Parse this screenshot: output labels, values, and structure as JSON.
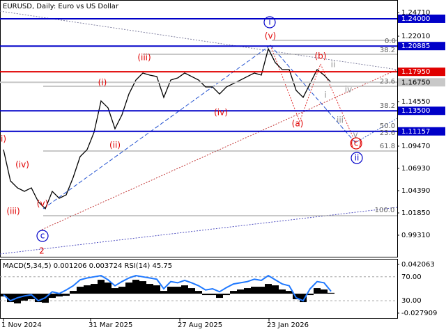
{
  "chart_data": [
    {
      "type": "line",
      "title": "EURUSD, Daily:  Euro vs US Dollar",
      "x": [
        0,
        1,
        2,
        3,
        4,
        5,
        6,
        7,
        8,
        9,
        10,
        11,
        12,
        13,
        14,
        15,
        16,
        17,
        18,
        19,
        20,
        21,
        22,
        23,
        24,
        25,
        26,
        27,
        28,
        29,
        30,
        31,
        32,
        33,
        34,
        35,
        36,
        37,
        38,
        39,
        40,
        41,
        42,
        43,
        44,
        45,
        46,
        47
      ],
      "xlim": [
        -0.5,
        56.5
      ],
      "xticks": [
        {
          "value": 0,
          "label": "1 Nov 2024"
        },
        {
          "value": 12.5,
          "label": "31 Mar 2025"
        },
        {
          "value": 25.3,
          "label": "27 Aug 2025"
        },
        {
          "value": 38.1,
          "label": "23 Jan 2026"
        }
      ],
      "ylim": [
        0.9677,
        1.2614
      ],
      "yticks": [
        {
          "value": 1.2471,
          "label": "1.24710"
        },
        {
          "value": 1.2201,
          "label": "1.22010"
        },
        {
          "value": 1.1455,
          "label": "1.14550"
        },
        {
          "value": 1.0947,
          "label": "1.09470"
        },
        {
          "value": 1.0693,
          "label": "1.06930"
        },
        {
          "value": 1.0439,
          "label": "1.04390"
        },
        {
          "value": 1.0185,
          "label": "1.01850"
        },
        {
          "value": 0.9931,
          "label": "0.99310"
        }
      ],
      "levels": [
        {
          "value": 1.24,
          "label": "1.24000",
          "color": "#0000c8"
        },
        {
          "value": 1.20885,
          "label": "1.20885",
          "color": "#0000c8"
        },
        {
          "value": 1.1795,
          "label": "1.17950",
          "color": "#e00000"
        },
        {
          "value": 1.1675,
          "label": "1.16750",
          "color": "#c8c8c8"
        },
        {
          "value": 1.135,
          "label": "1.13500",
          "color": "#0000c8"
        },
        {
          "value": 1.11157,
          "label": "1.11157",
          "color": "#0000c8"
        }
      ],
      "series": [
        {
          "color": "#000000",
          "values": [
            1.0907,
            1.055,
            1.0471,
            1.0431,
            1.0471,
            1.0312,
            1.0233,
            1.0431,
            1.0352,
            1.0391,
            1.059,
            1.0828,
            1.0907,
            1.1106,
            1.1463,
            1.1384,
            1.1145,
            1.1304,
            1.1542,
            1.1701,
            1.1781,
            1.1757,
            1.1741,
            1.1503,
            1.1701,
            1.1725,
            1.1781,
            1.1741,
            1.1701,
            1.1622,
            1.1622,
            1.1542,
            1.1622,
            1.1661,
            1.1701,
            1.1741,
            1.1781,
            1.1757,
            1.2058,
            1.19,
            1.182,
            1.182,
            1.1582,
            1.1503,
            1.1661,
            1.182,
            1.1757,
            1.1675
          ]
        }
      ],
      "annotations": [
        {
          "text": "(i)",
          "color": "#e00000"
        },
        {
          "text": "(ii)",
          "color": "#e00000"
        },
        {
          "text": "(iii)",
          "color": "#e00000"
        },
        {
          "text": "(iv)",
          "color": "#e00000"
        },
        {
          "text": "(v)",
          "color": "#e00000"
        },
        {
          "text": "(a)",
          "color": "#e00000"
        },
        {
          "text": "(b)",
          "color": "#e00000"
        },
        {
          "text": "(c)",
          "color": "#e00000"
        },
        {
          "text": "i",
          "color": "#0000c8"
        },
        {
          "text": "ii",
          "color": "#0000c8"
        },
        {
          "text": "c",
          "color": "#0000c8"
        },
        {
          "text": "2",
          "color": "#e00000"
        },
        {
          "text": "i)",
          "color": "#e00000"
        },
        {
          "text": "(iv)",
          "color": "#e00000"
        },
        {
          "text": "(iii)",
          "color": "#e00000"
        },
        {
          "text": "(v)",
          "color": "#e00000"
        },
        {
          "text": "ii",
          "color": "#909090"
        },
        {
          "text": "iv",
          "color": "#909090"
        },
        {
          "text": "i",
          "color": "#909090"
        },
        {
          "text": "iii",
          "color": "#909090"
        },
        {
          "text": "v",
          "color": "#909090"
        },
        {
          "text": "0.0",
          "color": "#606060"
        },
        {
          "text": "38.2",
          "color": "#606060"
        },
        {
          "text": "23.6",
          "color": "#606060"
        },
        {
          "text": "38.2",
          "color": "#606060"
        },
        {
          "text": "50.0",
          "color": "#606060"
        },
        {
          "text": "23.6",
          "color": "#606060"
        },
        {
          "text": "61.8",
          "color": "#606060"
        },
        {
          "text": "100.0",
          "color": "#606060"
        }
      ]
    },
    {
      "type": "macd",
      "title": "MACD(5,34,5) 0.001206 0.003724 RSI(14) 45.75",
      "x": [
        0,
        1,
        2,
        3,
        4,
        5,
        6,
        7,
        8,
        9,
        10,
        11,
        12,
        13,
        14,
        15,
        16,
        17,
        18,
        19,
        20,
        21,
        22,
        23,
        24,
        25,
        26,
        27,
        28,
        29,
        30,
        31,
        32,
        33,
        34,
        35,
        36,
        37,
        38,
        39,
        40,
        41,
        42,
        43,
        44,
        45,
        46,
        47
      ],
      "xlim": [
        -0.5,
        56.5
      ],
      "ylim": [
        -0.035937,
        0.050063
      ],
      "yticks": [
        0.042063,
        -0.027909
      ],
      "y2lim": [
        0,
        100
      ],
      "y2ticks": [
        {
          "value": 70,
          "label": "70.00"
        },
        {
          "value": 30,
          "label": "30.00"
        }
      ],
      "series": [
        {
          "color": "#000000",
          "values": [
            -0.004,
            -0.012,
            -0.014,
            -0.01,
            -0.008,
            -0.012,
            -0.013,
            -0.006,
            -0.004,
            -0.003,
            0.004,
            0.01,
            0.012,
            0.014,
            0.02,
            0.016,
            0.008,
            0.01,
            0.016,
            0.02,
            0.018,
            0.014,
            0.012,
            0.004,
            0.01,
            0.01,
            0.012,
            0.008,
            0.004,
            -0.002,
            -0.002,
            -0.006,
            -0.002,
            0.004,
            0.006,
            0.008,
            0.01,
            0.01,
            0.014,
            0.012,
            0.006,
            0.004,
            -0.008,
            -0.012,
            -0.002,
            0.008,
            0.006,
            0.001206
          ]
        },
        {
          "color": "#1e78ff",
          "axis": "y2",
          "values": [
            40,
            30,
            35,
            38,
            40,
            30,
            35,
            45,
            42,
            48,
            55,
            65,
            68,
            70,
            72,
            65,
            55,
            62,
            68,
            72,
            70,
            68,
            66,
            50,
            62,
            60,
            64,
            60,
            55,
            48,
            50,
            45,
            52,
            58,
            60,
            62,
            66,
            64,
            72,
            65,
            58,
            55,
            35,
            30,
            50,
            62,
            60,
            45.75
          ]
        }
      ]
    }
  ]
}
